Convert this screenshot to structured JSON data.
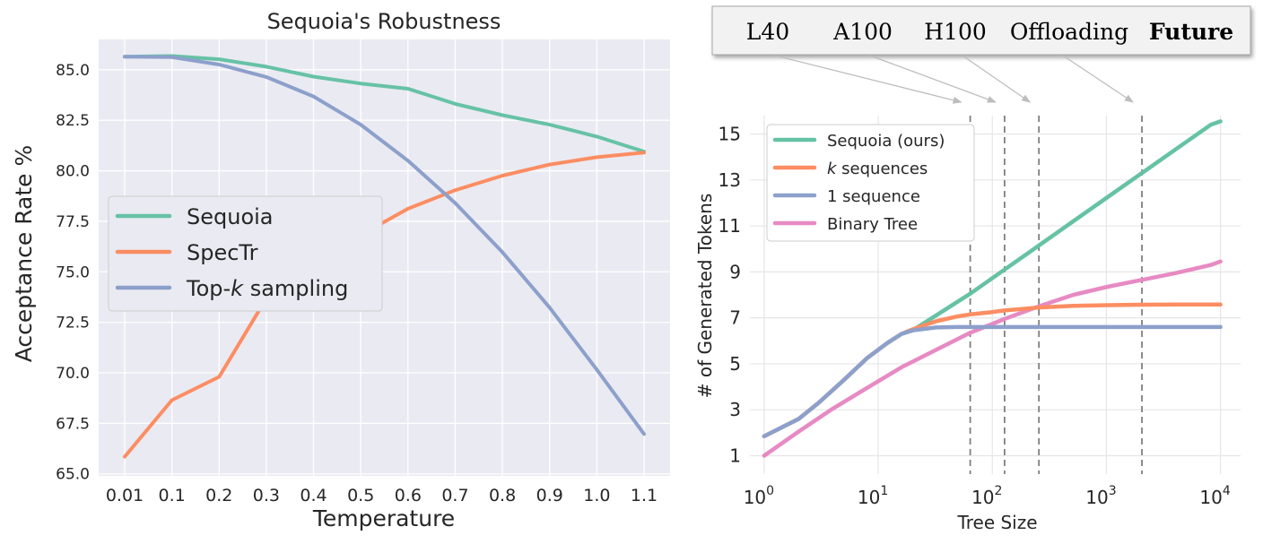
{
  "chart_data": [
    {
      "type": "line",
      "title": "Sequoia's Robustness",
      "xlabel": "Temperature",
      "ylabel": "Acceptance Rate %",
      "categories": [
        "0.01",
        "0.1",
        "0.2",
        "0.3",
        "0.4",
        "0.5",
        "0.6",
        "0.7",
        "0.8",
        "0.9",
        "1.0",
        "1.1"
      ],
      "yticks": [
        "65.0",
        "67.5",
        "70.0",
        "72.5",
        "75.0",
        "77.5",
        "80.0",
        "82.5",
        "85.0"
      ],
      "ylim": [
        64.9,
        86.5
      ],
      "grid": true,
      "legend_position": "center-left",
      "series": [
        {
          "name": "Sequoia",
          "color": "#66c2a5",
          "values": [
            85.65,
            85.68,
            85.52,
            85.15,
            84.66,
            84.32,
            84.06,
            83.31,
            82.75,
            82.28,
            81.69,
            80.95
          ]
        },
        {
          "name": "SpecTr",
          "color": "#fc8d62",
          "values": [
            65.85,
            68.65,
            69.8,
            73.68,
            75.5,
            76.82,
            78.12,
            79.04,
            79.76,
            80.31,
            80.67,
            80.9
          ]
        },
        {
          "name_prefix": "Top-",
          "name_italic": "k",
          "name_suffix": " sampling",
          "color": "#8da0cb",
          "values": [
            85.65,
            85.62,
            85.26,
            84.64,
            83.68,
            82.28,
            80.5,
            78.4,
            75.97,
            73.23,
            70.15,
            66.97
          ]
        }
      ]
    },
    {
      "type": "line",
      "title": "",
      "xlabel": "Tree Size",
      "ylabel": "# of Generated Tokens",
      "x_scale": "log",
      "xlim": [
        0.75,
        15000
      ],
      "ylim": [
        0.2,
        15.8
      ],
      "xticks": [
        {
          "value": 1,
          "base": "10",
          "exp": "0"
        },
        {
          "value": 10,
          "base": "10",
          "exp": "1"
        },
        {
          "value": 100,
          "base": "10",
          "exp": "2"
        },
        {
          "value": 1000,
          "base": "10",
          "exp": "3"
        },
        {
          "value": 10000,
          "base": "10",
          "exp": "4"
        }
      ],
      "yticks": [
        1,
        3,
        5,
        7,
        9,
        11,
        13,
        15
      ],
      "grid": true,
      "legend_position": "top-left",
      "series": [
        {
          "name": "Sequoia (ours)",
          "color": "#66c2a5",
          "x": [
            1,
            2,
            3,
            5,
            8,
            12,
            16,
            20,
            64,
            128,
            256,
            512,
            1024,
            2048,
            4096,
            8192,
            10000
          ],
          "y": [
            1.85,
            2.6,
            3.3,
            4.3,
            5.25,
            5.9,
            6.3,
            6.45,
            8.05,
            9.1,
            10.15,
            11.2,
            12.25,
            13.3,
            14.35,
            15.4,
            15.55
          ]
        },
        {
          "name_italic": "k",
          "name_suffix": " sequences",
          "color": "#fc8d62",
          "x": [
            1,
            2,
            3,
            5,
            8,
            12,
            16,
            20,
            32,
            48,
            64,
            100,
            128,
            256,
            512,
            1024,
            2048,
            4096,
            8192,
            10000
          ],
          "y": [
            1.85,
            2.6,
            3.3,
            4.3,
            5.25,
            5.9,
            6.3,
            6.5,
            6.85,
            7.05,
            7.15,
            7.25,
            7.32,
            7.45,
            7.52,
            7.55,
            7.57,
            7.58,
            7.58,
            7.58
          ]
        },
        {
          "name": "1 sequence",
          "color": "#8da0cb",
          "x": [
            1,
            2,
            3,
            5,
            8,
            12,
            16,
            20,
            32,
            48,
            64,
            128,
            256,
            1000,
            10000
          ],
          "y": [
            1.85,
            2.6,
            3.3,
            4.3,
            5.25,
            5.9,
            6.3,
            6.45,
            6.58,
            6.6,
            6.6,
            6.6,
            6.6,
            6.6,
            6.6
          ]
        },
        {
          "name": "Binary Tree",
          "color": "#e78ac3",
          "x": [
            1,
            2,
            4,
            8,
            16,
            32,
            64,
            128,
            256,
            512,
            1024,
            2048,
            4096,
            8192,
            10000
          ],
          "y": [
            1.0,
            2.05,
            3.05,
            3.95,
            4.85,
            5.6,
            6.35,
            6.95,
            7.5,
            8.0,
            8.35,
            8.65,
            8.95,
            9.3,
            9.45
          ]
        }
      ],
      "vlines": [
        64,
        128,
        256,
        2048
      ],
      "hardware_labels": [
        "L40",
        "A100",
        "H100",
        "Offloading",
        "Future"
      ]
    }
  ]
}
